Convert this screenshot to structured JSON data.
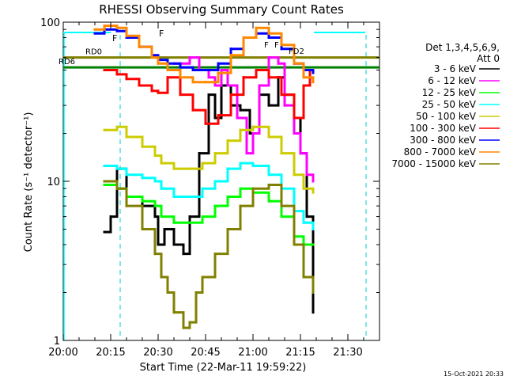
{
  "chart_data": {
    "type": "line",
    "title": "RHESSI Observing Summary Count Rates",
    "xlabel": "Start Time (22-Mar-11 19:59:22)",
    "ylabel": "Count Rate (s⁻¹ detector⁻¹)",
    "y_scale": "log",
    "xlim": [
      "20:00",
      "21:40"
    ],
    "ylim": [
      1,
      100
    ],
    "grid": false,
    "legend_placement": "right",
    "x_ticks": [
      "20:00",
      "20:15",
      "20:30",
      "20:45",
      "21:00",
      "21:15",
      "21:30"
    ],
    "y_ticks": [
      "1",
      "10",
      "100"
    ],
    "legend_header": [
      "Det 1,3,4,5,6,9,",
      "Att 0"
    ],
    "series": [
      {
        "name": "3 - 6 keV",
        "color": "#000000",
        "x": [
          "20:13",
          "20:15",
          "20:17",
          "20:20",
          "20:25",
          "20:29",
          "20:30",
          "20:32",
          "20:35",
          "20:38",
          "20:40",
          "20:43",
          "20:46",
          "20:48",
          "20:50",
          "20:53",
          "20:56",
          "20:59",
          "21:02",
          "21:05",
          "21:08",
          "21:10",
          "21:13",
          "21:15",
          "21:17",
          "21:19"
        ],
        "y": [
          4.8,
          6.0,
          12.0,
          8.0,
          7.0,
          6.0,
          4.0,
          5.0,
          4.0,
          3.5,
          6.0,
          15.0,
          35.0,
          25.0,
          40.0,
          30.0,
          28.0,
          20.0,
          35.0,
          30.0,
          45.0,
          35.0,
          25.0,
          15.0,
          6.0,
          1.5
        ]
      },
      {
        "name": "6 - 12 keV",
        "color": "#ff00ff",
        "x": [
          "20:35",
          "20:40",
          "20:43",
          "20:46",
          "20:48",
          "20:50",
          "20:52",
          "20:55",
          "20:58",
          "21:00",
          "21:02",
          "21:05",
          "21:08",
          "21:10",
          "21:13",
          "21:15",
          "21:17",
          "21:19"
        ],
        "y": [
          55.0,
          60.0,
          50.0,
          45.0,
          40.0,
          50.0,
          40.0,
          25.0,
          15.0,
          20.0,
          40.0,
          60.0,
          55.0,
          30.0,
          20.0,
          15.0,
          11.0,
          10.0
        ]
      },
      {
        "name": "12 - 25 keV",
        "color": "#00ff00",
        "x": [
          "20:13",
          "20:17",
          "20:20",
          "20:25",
          "20:29",
          "20:31",
          "20:35",
          "20:40",
          "20:44",
          "20:48",
          "20:52",
          "20:56",
          "21:00",
          "21:05",
          "21:09",
          "21:13",
          "21:16",
          "21:19"
        ],
        "y": [
          9.5,
          9.0,
          8.0,
          7.5,
          7.0,
          6.0,
          5.5,
          5.5,
          6.0,
          7.0,
          8.0,
          9.0,
          8.5,
          7.5,
          6.0,
          4.5,
          4.0,
          4.0
        ]
      },
      {
        "name": "25 - 50 keV",
        "color": "#00ffff",
        "x": [
          "20:13",
          "20:17",
          "20:20",
          "20:25",
          "20:29",
          "20:31",
          "20:35",
          "20:40",
          "20:44",
          "20:48",
          "20:52",
          "20:56",
          "21:00",
          "21:05",
          "21:09",
          "21:13",
          "21:16",
          "21:19"
        ],
        "y": [
          12.5,
          12.0,
          11.0,
          10.5,
          10.0,
          9.0,
          8.0,
          8.0,
          9.0,
          10.0,
          12.0,
          13.0,
          12.5,
          11.0,
          9.0,
          6.5,
          5.5,
          5.0
        ]
      },
      {
        "name": "50 - 100 keV",
        "color": "#cccc00",
        "x": [
          "20:13",
          "20:17",
          "20:20",
          "20:25",
          "20:29",
          "20:31",
          "20:35",
          "20:40",
          "20:44",
          "20:48",
          "20:52",
          "20:56",
          "21:00",
          "21:05",
          "21:09",
          "21:13",
          "21:16",
          "21:19"
        ],
        "y": [
          21.0,
          22.0,
          19.0,
          16.5,
          14.5,
          13.0,
          12.0,
          12.0,
          13.0,
          15.0,
          18.0,
          21.0,
          22.0,
          19.0,
          15.0,
          11.0,
          9.0,
          8.5
        ]
      },
      {
        "name": "100 - 300 keV",
        "color": "#ff0000",
        "x": [
          "20:13",
          "20:17",
          "20:20",
          "20:24",
          "20:28",
          "20:30",
          "20:33",
          "20:37",
          "20:41",
          "20:45",
          "20:49",
          "20:53",
          "20:57",
          "21:01",
          "21:05",
          "21:09",
          "21:13",
          "21:16",
          "21:18",
          "21:19"
        ],
        "y": [
          50.0,
          47.0,
          44.0,
          40.0,
          37.0,
          36.0,
          45.0,
          35.0,
          28.0,
          23.0,
          26.0,
          35.0,
          45.0,
          50.0,
          45.0,
          35.0,
          25.0,
          40.0,
          50.0,
          50.0
        ]
      },
      {
        "name": "300 - 800 keV",
        "color": "#0000ff",
        "x": [
          "20:10",
          "20:13",
          "20:17",
          "20:20",
          "20:24",
          "20:28",
          "20:30",
          "20:33",
          "20:37",
          "20:41",
          "20:45",
          "20:49",
          "20:53",
          "20:57",
          "21:01",
          "21:05",
          "21:09",
          "21:13",
          "21:16",
          "21:19"
        ],
        "y": [
          85.0,
          90.0,
          88.0,
          80.0,
          70.0,
          62.0,
          58.0,
          55.0,
          52.0,
          50.0,
          50.0,
          55.0,
          68.0,
          80.0,
          85.0,
          80.0,
          68.0,
          55.0,
          50.0,
          48.0
        ]
      },
      {
        "name": "800 - 7000 keV",
        "color": "#ff8800",
        "x": [
          "20:10",
          "20:13",
          "20:17",
          "20:20",
          "20:24",
          "20:28",
          "20:30",
          "20:33",
          "20:37",
          "20:41",
          "20:45",
          "20:49",
          "20:53",
          "20:57",
          "21:01",
          "21:05",
          "21:09",
          "21:13",
          "21:16",
          "21:19"
        ],
        "y": [
          90.0,
          95.0,
          92.0,
          82.0,
          70.0,
          60.0,
          55.0,
          50.0,
          45.0,
          42.0,
          42.0,
          48.0,
          62.0,
          80.0,
          92.0,
          85.0,
          72.0,
          55.0,
          45.0,
          42.0
        ]
      },
      {
        "name": "7000 - 15000 keV",
        "color": "#808000",
        "x": [
          "20:13",
          "20:17",
          "20:20",
          "20:25",
          "20:29",
          "20:31",
          "20:33",
          "20:35",
          "20:38",
          "20:40",
          "20:42",
          "20:44",
          "20:48",
          "20:52",
          "20:56",
          "21:00",
          "21:05",
          "21:09",
          "21:13",
          "21:16",
          "21:19"
        ],
        "y": [
          10.0,
          9.0,
          7.0,
          5.0,
          3.5,
          2.5,
          2.0,
          1.5,
          1.2,
          1.3,
          2.0,
          2.5,
          3.5,
          5.0,
          7.0,
          9.0,
          9.5,
          7.0,
          4.0,
          2.5,
          2.0
        ]
      }
    ],
    "flags": [
      {
        "label": "RD0",
        "color": "#808000",
        "x_start": "20:00",
        "x_end": "21:40",
        "level": 60
      },
      {
        "label": "RD6",
        "color": "#008000",
        "x_start": "20:00",
        "x_end": "21:40",
        "level": 52
      }
    ],
    "flag_labels": [
      "F",
      "F",
      "F",
      "F",
      "FD2"
    ],
    "timestamp": "15-Oct-2021 20:33"
  }
}
